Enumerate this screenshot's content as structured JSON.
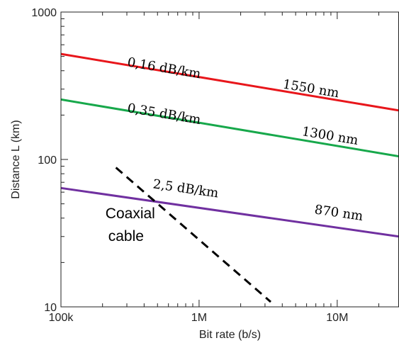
{
  "chart_data": {
    "type": "line",
    "xscale": "log",
    "yscale": "log",
    "xlim": [
      100000,
      28000000
    ],
    "ylim": [
      10,
      1000
    ],
    "xlabel": "Bit rate (b/s)",
    "ylabel": "Distance  L (km)",
    "x_ticks": [
      {
        "value": 100000,
        "label": "100k"
      },
      {
        "value": 1000000,
        "label": "1M"
      },
      {
        "value": 10000000,
        "label": "10M"
      }
    ],
    "y_ticks": [
      {
        "value": 10,
        "label": "10"
      },
      {
        "value": 100,
        "label": "100"
      },
      {
        "value": 1000,
        "label": "1000"
      }
    ],
    "grid": false,
    "series": [
      {
        "name": "1550 nm",
        "color": "#e8161b",
        "style": "solid",
        "x": [
          100000,
          28000000
        ],
        "y": [
          520,
          215
        ]
      },
      {
        "name": "1300 nm",
        "color": "#17a84b",
        "style": "solid",
        "x": [
          100000,
          28000000
        ],
        "y": [
          255,
          105
        ]
      },
      {
        "name": "870 nm",
        "color": "#7030a0",
        "style": "solid",
        "x": [
          100000,
          28000000
        ],
        "y": [
          64,
          30
        ]
      },
      {
        "name": "Coaxial cable",
        "color": "#000000",
        "style": "dashed",
        "x": [
          250000,
          3300000
        ],
        "y": [
          88,
          10.8
        ]
      }
    ],
    "annotations": [
      {
        "id": "loss-1550",
        "text": "0,16 dB/km",
        "x": 300000,
        "y": 430,
        "kind": "loss"
      },
      {
        "id": "label-1550",
        "text": "1550 nm",
        "x": 4000000,
        "y": 305,
        "kind": "wavelength"
      },
      {
        "id": "loss-1300",
        "text": "0,35 dB/km",
        "x": 300000,
        "y": 210,
        "kind": "loss"
      },
      {
        "id": "label-1300",
        "text": "1300 nm",
        "x": 5500000,
        "y": 146,
        "kind": "wavelength"
      },
      {
        "id": "loss-870",
        "text": "2,5 dB/km",
        "x": 460000,
        "y": 64,
        "kind": "loss"
      },
      {
        "id": "label-870",
        "text": "870 nm",
        "x": 6800000,
        "y": 43,
        "kind": "wavelength"
      },
      {
        "id": "coax-line1",
        "text": "Coaxial",
        "x": 210000,
        "y": 40,
        "kind": "coax"
      },
      {
        "id": "coax-line2",
        "text": "cable",
        "x": 220000,
        "y": 28,
        "kind": "coax"
      }
    ]
  }
}
